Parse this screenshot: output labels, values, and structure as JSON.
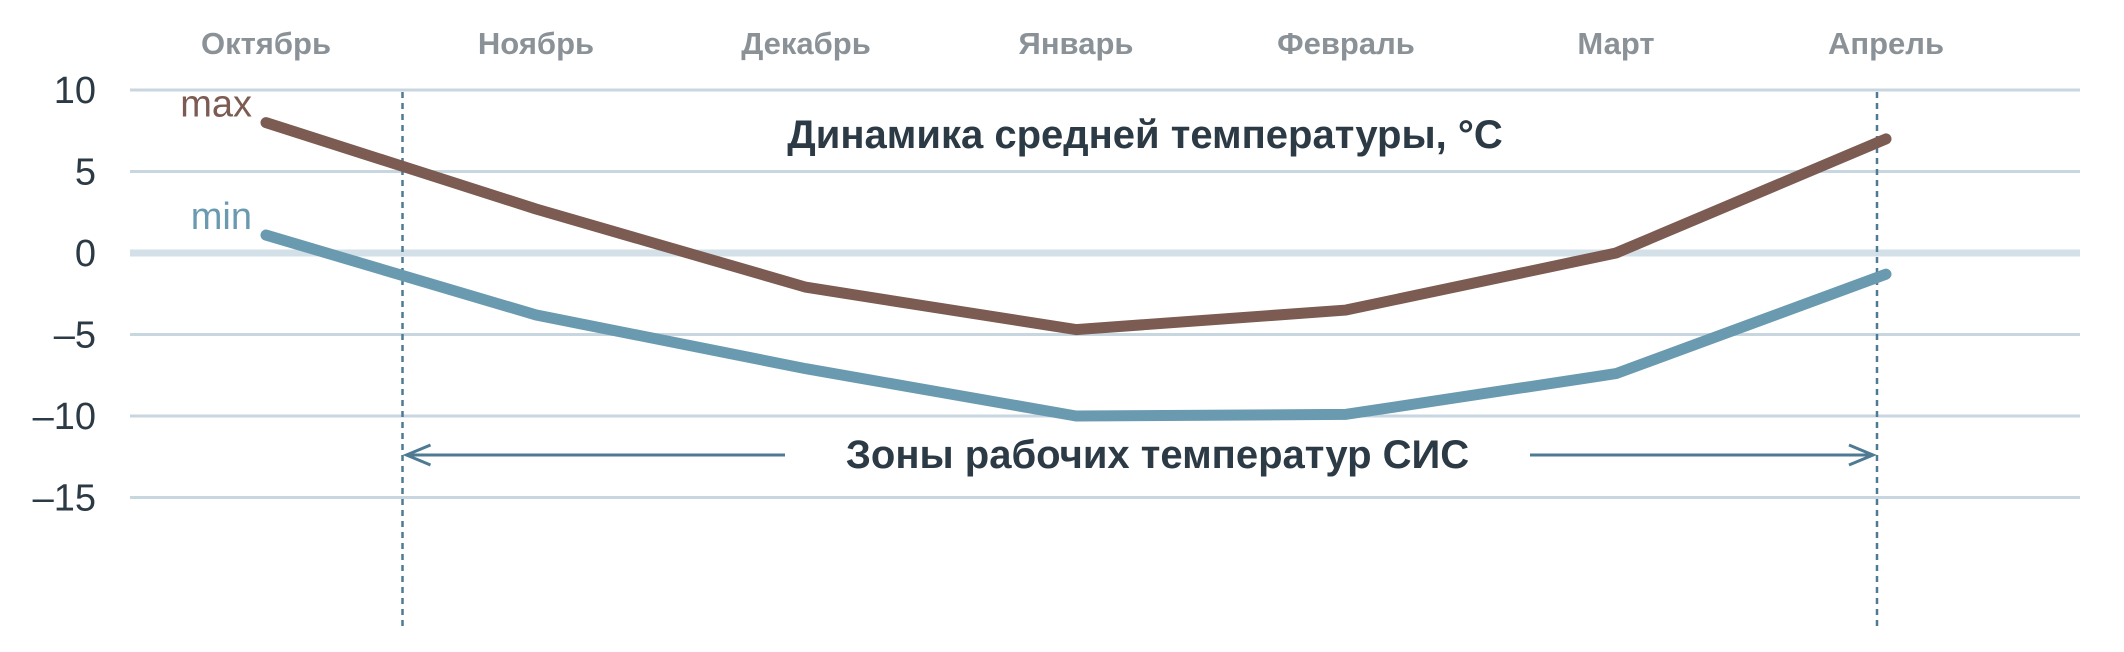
{
  "colors": {
    "max": "#7b5b52",
    "min": "#6a9ab0",
    "grid": "#c8d6e0",
    "zero": "#d3e0e8",
    "month_text": "#8a9298",
    "axis_text": "#2b3a45",
    "title_text": "#2b3a45",
    "bracket": "#4e7a93"
  },
  "chart_data": {
    "type": "line",
    "title": "Динамика средней температуры, °C",
    "categories": [
      "Октябрь",
      "Ноябрь",
      "Декабрь",
      "Январь",
      "Февраль",
      "Март",
      "Апрель"
    ],
    "y_ticks": [
      "10",
      "5",
      "0",
      "–5",
      "–10",
      "–15"
    ],
    "ylim": [
      -15,
      10
    ],
    "grid": true,
    "series": [
      {
        "name": "max",
        "points": [
          {
            "x": 0,
            "y": 8
          },
          {
            "x": 1,
            "y": 2.7
          },
          {
            "x": 2,
            "y": -2.1
          },
          {
            "x": 3,
            "y": -4.7
          },
          {
            "x": 4,
            "y": -3.5
          },
          {
            "x": 5,
            "y": 0
          },
          {
            "x": 6,
            "y": 7
          }
        ]
      },
      {
        "name": "min",
        "points": [
          {
            "x": 0,
            "y": 1.1
          },
          {
            "x": 1,
            "y": -3.8
          },
          {
            "x": 2,
            "y": -7.1
          },
          {
            "x": 3,
            "y": -10
          },
          {
            "x": 4,
            "y": -9.9
          },
          {
            "x": 5,
            "y": -7.4
          },
          {
            "x": 6,
            "y": -1.3
          }
        ]
      }
    ],
    "annotation": {
      "text": "Зоны рабочих температур СИС",
      "range": [
        0.5,
        6
      ]
    }
  }
}
